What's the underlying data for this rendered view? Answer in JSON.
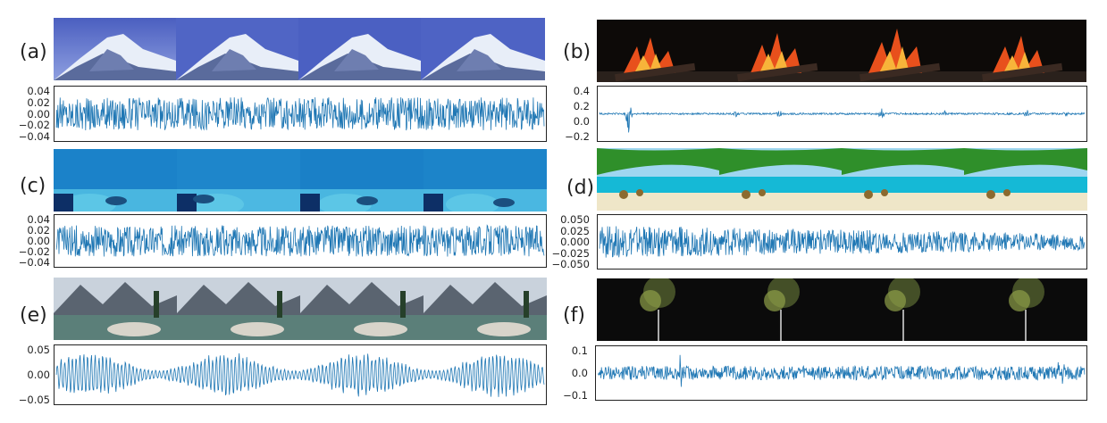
{
  "panels": [
    {
      "label": "(a)",
      "scene": "snowy-mountain",
      "wave": {
        "ticks": [
          "0.04",
          "0.02",
          "0.00",
          "−0.02",
          "−0.04"
        ],
        "ylim": [
          -0.05,
          0.05
        ]
      }
    },
    {
      "label": "(b)",
      "scene": "fireplace",
      "wave": {
        "ticks": [
          "0.4",
          "0.2",
          "0.0",
          "−0.2"
        ],
        "ylim": [
          -0.35,
          0.45
        ]
      }
    },
    {
      "label": "(c)",
      "scene": "underwater-diver",
      "wave": {
        "ticks": [
          "0.04",
          "0.02",
          "0.00",
          "−0.02",
          "−0.04"
        ],
        "ylim": [
          -0.045,
          0.045
        ]
      }
    },
    {
      "label": "(d)",
      "scene": "tropical-beach",
      "wave": {
        "ticks": [
          "0.050",
          "0.025",
          "0.000",
          "−0.025",
          "−0.050"
        ],
        "ylim": [
          -0.06,
          0.06
        ]
      }
    },
    {
      "label": "(e)",
      "scene": "mountain-lake",
      "wave": {
        "ticks": [
          "0.05",
          "0.00",
          "−0.05"
        ],
        "ylim": [
          -0.08,
          0.08
        ]
      }
    },
    {
      "label": "(f)",
      "scene": "night-street-light",
      "wave": {
        "ticks": [
          "0.1",
          "0.0",
          "−0.1"
        ],
        "ylim": [
          -0.15,
          0.15
        ]
      }
    }
  ],
  "colors": {
    "waveform": "#1f77b4",
    "frame": "#222222"
  }
}
